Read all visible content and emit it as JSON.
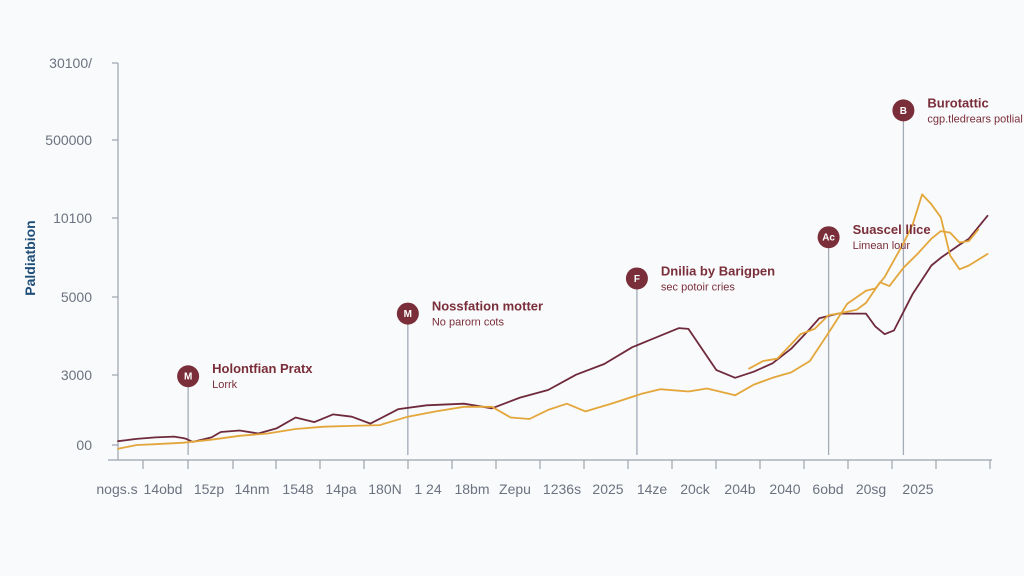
{
  "chart_data": {
    "type": "line",
    "title": "",
    "xlabel": "",
    "ylabel": "Paldiatbion",
    "y_ticks": [
      "00",
      "3000",
      "5000",
      "10100",
      "500000",
      "30100/"
    ],
    "x_ticks": [
      "nogs.s",
      "14obd",
      "15zp",
      "14nm",
      "1548",
      "14pa",
      "180N",
      "1 24",
      "18bm",
      "Zepu",
      "1236s",
      "2025",
      "14ze",
      "20ck",
      "204b",
      "2040",
      "6obd",
      "20sg",
      "2025"
    ],
    "x_range": [
      0,
      100
    ],
    "y_range": [
      0,
      5
    ],
    "grid": false,
    "legend": "none",
    "colors": {
      "maroon": "#6e2a3c",
      "gold": "#e3a63b",
      "axis": "#9ca3af",
      "marker": "#7a2e3a"
    },
    "series": [
      {
        "name": "maroon-series",
        "color": "#6e2a3c",
        "points": [
          [
            0,
            0.05
          ],
          [
            2,
            0.08
          ],
          [
            4,
            0.1
          ],
          [
            6,
            0.11
          ],
          [
            7,
            0.09
          ],
          [
            7.3,
            0.08
          ],
          [
            8,
            0.04
          ],
          [
            10,
            0.1
          ],
          [
            11,
            0.17
          ],
          [
            13,
            0.19
          ],
          [
            15,
            0.15
          ],
          [
            17,
            0.22
          ],
          [
            19,
            0.36
          ],
          [
            21,
            0.3
          ],
          [
            23,
            0.4
          ],
          [
            25,
            0.37
          ],
          [
            27,
            0.28
          ],
          [
            30,
            0.47
          ],
          [
            33,
            0.52
          ],
          [
            37,
            0.54
          ],
          [
            40,
            0.48
          ],
          [
            43,
            0.62
          ],
          [
            46,
            0.72
          ],
          [
            49,
            0.92
          ],
          [
            52,
            1.06
          ],
          [
            55,
            1.28
          ],
          [
            57,
            1.38
          ],
          [
            60,
            1.53
          ],
          [
            61,
            1.52
          ],
          [
            64,
            0.98
          ],
          [
            66,
            0.88
          ],
          [
            68,
            0.96
          ],
          [
            70,
            1.07
          ],
          [
            72,
            1.26
          ],
          [
            74,
            1.52
          ],
          [
            75,
            1.66
          ],
          [
            77,
            1.72
          ],
          [
            80,
            1.72
          ],
          [
            81,
            1.55
          ],
          [
            82,
            1.45
          ],
          [
            83,
            1.5
          ],
          [
            85,
            1.98
          ],
          [
            87,
            2.35
          ],
          [
            88,
            2.45
          ],
          [
            90,
            2.62
          ],
          [
            91,
            2.7
          ],
          [
            93,
            3.0
          ]
        ]
      },
      {
        "name": "gold-series-a",
        "color": "#e3a63b",
        "points": [
          [
            0,
            -0.05
          ],
          [
            2,
            0.0
          ],
          [
            4,
            0.01
          ],
          [
            7,
            0.03
          ],
          [
            10,
            0.07
          ],
          [
            13,
            0.12
          ],
          [
            16,
            0.15
          ],
          [
            19,
            0.21
          ],
          [
            22,
            0.24
          ],
          [
            25,
            0.25
          ],
          [
            28,
            0.26
          ],
          [
            31,
            0.37
          ],
          [
            34,
            0.44
          ],
          [
            37,
            0.5
          ],
          [
            40,
            0.5
          ],
          [
            42,
            0.36
          ],
          [
            44,
            0.34
          ],
          [
            46,
            0.46
          ],
          [
            48,
            0.54
          ],
          [
            50,
            0.44
          ],
          [
            53,
            0.55
          ],
          [
            56,
            0.67
          ],
          [
            58,
            0.73
          ],
          [
            61,
            0.7
          ],
          [
            63,
            0.74
          ],
          [
            66,
            0.65
          ],
          [
            68,
            0.79
          ],
          [
            70,
            0.88
          ],
          [
            72,
            0.95
          ],
          [
            74,
            1.1
          ],
          [
            76,
            1.47
          ],
          [
            78,
            1.85
          ],
          [
            80,
            2.02
          ],
          [
            81,
            2.05
          ],
          [
            82,
            2.2
          ],
          [
            84,
            2.64
          ],
          [
            85,
            2.89
          ],
          [
            86,
            3.28
          ],
          [
            87,
            3.15
          ],
          [
            88,
            2.98
          ],
          [
            89,
            2.48
          ],
          [
            90,
            2.3
          ],
          [
            91,
            2.35
          ],
          [
            93,
            2.5
          ]
        ]
      },
      {
        "name": "gold-series-b",
        "color": "#e3a63b",
        "points": [
          [
            67.5,
            1.0
          ],
          [
            69,
            1.1
          ],
          [
            70.5,
            1.13
          ],
          [
            72,
            1.32
          ],
          [
            73,
            1.45
          ],
          [
            74.5,
            1.52
          ],
          [
            76,
            1.7
          ],
          [
            77,
            1.72
          ],
          [
            79,
            1.77
          ],
          [
            80,
            1.86
          ],
          [
            81.5,
            2.13
          ],
          [
            82.5,
            2.08
          ],
          [
            84,
            2.32
          ],
          [
            85.5,
            2.5
          ],
          [
            87,
            2.7
          ],
          [
            88,
            2.8
          ],
          [
            89,
            2.78
          ],
          [
            90,
            2.65
          ],
          [
            91,
            2.67
          ],
          [
            92,
            2.82
          ]
        ]
      }
    ],
    "annotations": [
      {
        "glyph": "M",
        "title": "Holontfian Pratx",
        "subtitle": "Lorrk",
        "x": 7.5,
        "level": 0.9
      },
      {
        "glyph": "M",
        "title": "Nossfation motter",
        "subtitle": "No parorn cots",
        "x": 31,
        "level": 1.72
      },
      {
        "glyph": "F",
        "title": "Dnilia by Barigpen",
        "subtitle": "sec potoir cries",
        "x": 55.5,
        "level": 2.18
      },
      {
        "glyph": "Ac",
        "title": "Suascel llice",
        "subtitle": "Limean lour",
        "x": 76,
        "level": 2.72
      },
      {
        "glyph": "B",
        "title": "Burotattic",
        "subtitle": "cgp.tledrears potlial",
        "x": 84,
        "level": 4.38
      }
    ]
  }
}
